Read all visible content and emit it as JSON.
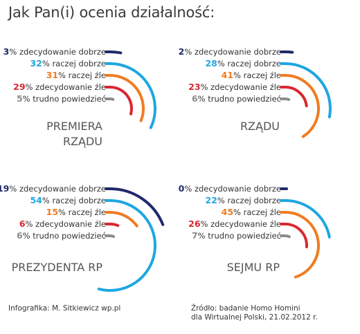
{
  "title": "Jak Pan(i) ocenia działalność:",
  "credit": "Infografika: M. Sitkiewicz wp.pl",
  "source_line1": "Źródło: badanie Homo Homini",
  "source_line2": "dla Wirtualnej Polski, 21.02.2012 r.",
  "colors": {
    "zdecydowanie dobrze": "#1f2a6b",
    "raczej dobrze": "#1ea7e1",
    "raczej źle": "#f07c22",
    "zdecydowanie źle": "#d9282f",
    "trudno powiedzieć": "#8c8c8c",
    "panel_label": "#555555"
  },
  "chart_data": [
    {
      "type": "pie",
      "label_lines": [
        "PREMIERA",
        "RZĄDU"
      ],
      "categories": [
        "zdecydowanie dobrze",
        "raczej dobrze",
        "raczej źle",
        "zdecydowanie źle",
        "trudno powiedzieć"
      ],
      "values": [
        3,
        32,
        31,
        29,
        5
      ]
    },
    {
      "type": "pie",
      "label_lines": [
        "RZĄDU"
      ],
      "categories": [
        "zdecydowanie dobrze",
        "raczej dobrze",
        "raczej źle",
        "zdecydowanie źle",
        "trudno powiedzieć"
      ],
      "values": [
        2,
        28,
        41,
        23,
        6
      ]
    },
    {
      "type": "pie",
      "label_lines": [
        "PREZYDENTA RP"
      ],
      "categories": [
        "zdecydowanie dobrze",
        "raczej dobrze",
        "raczej źle",
        "zdecydowanie źle",
        "trudno powiedzieć"
      ],
      "values": [
        19,
        54,
        15,
        6,
        6
      ]
    },
    {
      "type": "pie",
      "label_lines": [
        "SEJMU RP"
      ],
      "categories": [
        "zdecydowanie dobrze",
        "raczej dobrze",
        "raczej źle",
        "zdecydowanie źle",
        "trudno powiedzieć"
      ],
      "values": [
        0,
        22,
        45,
        26,
        7
      ]
    }
  ]
}
